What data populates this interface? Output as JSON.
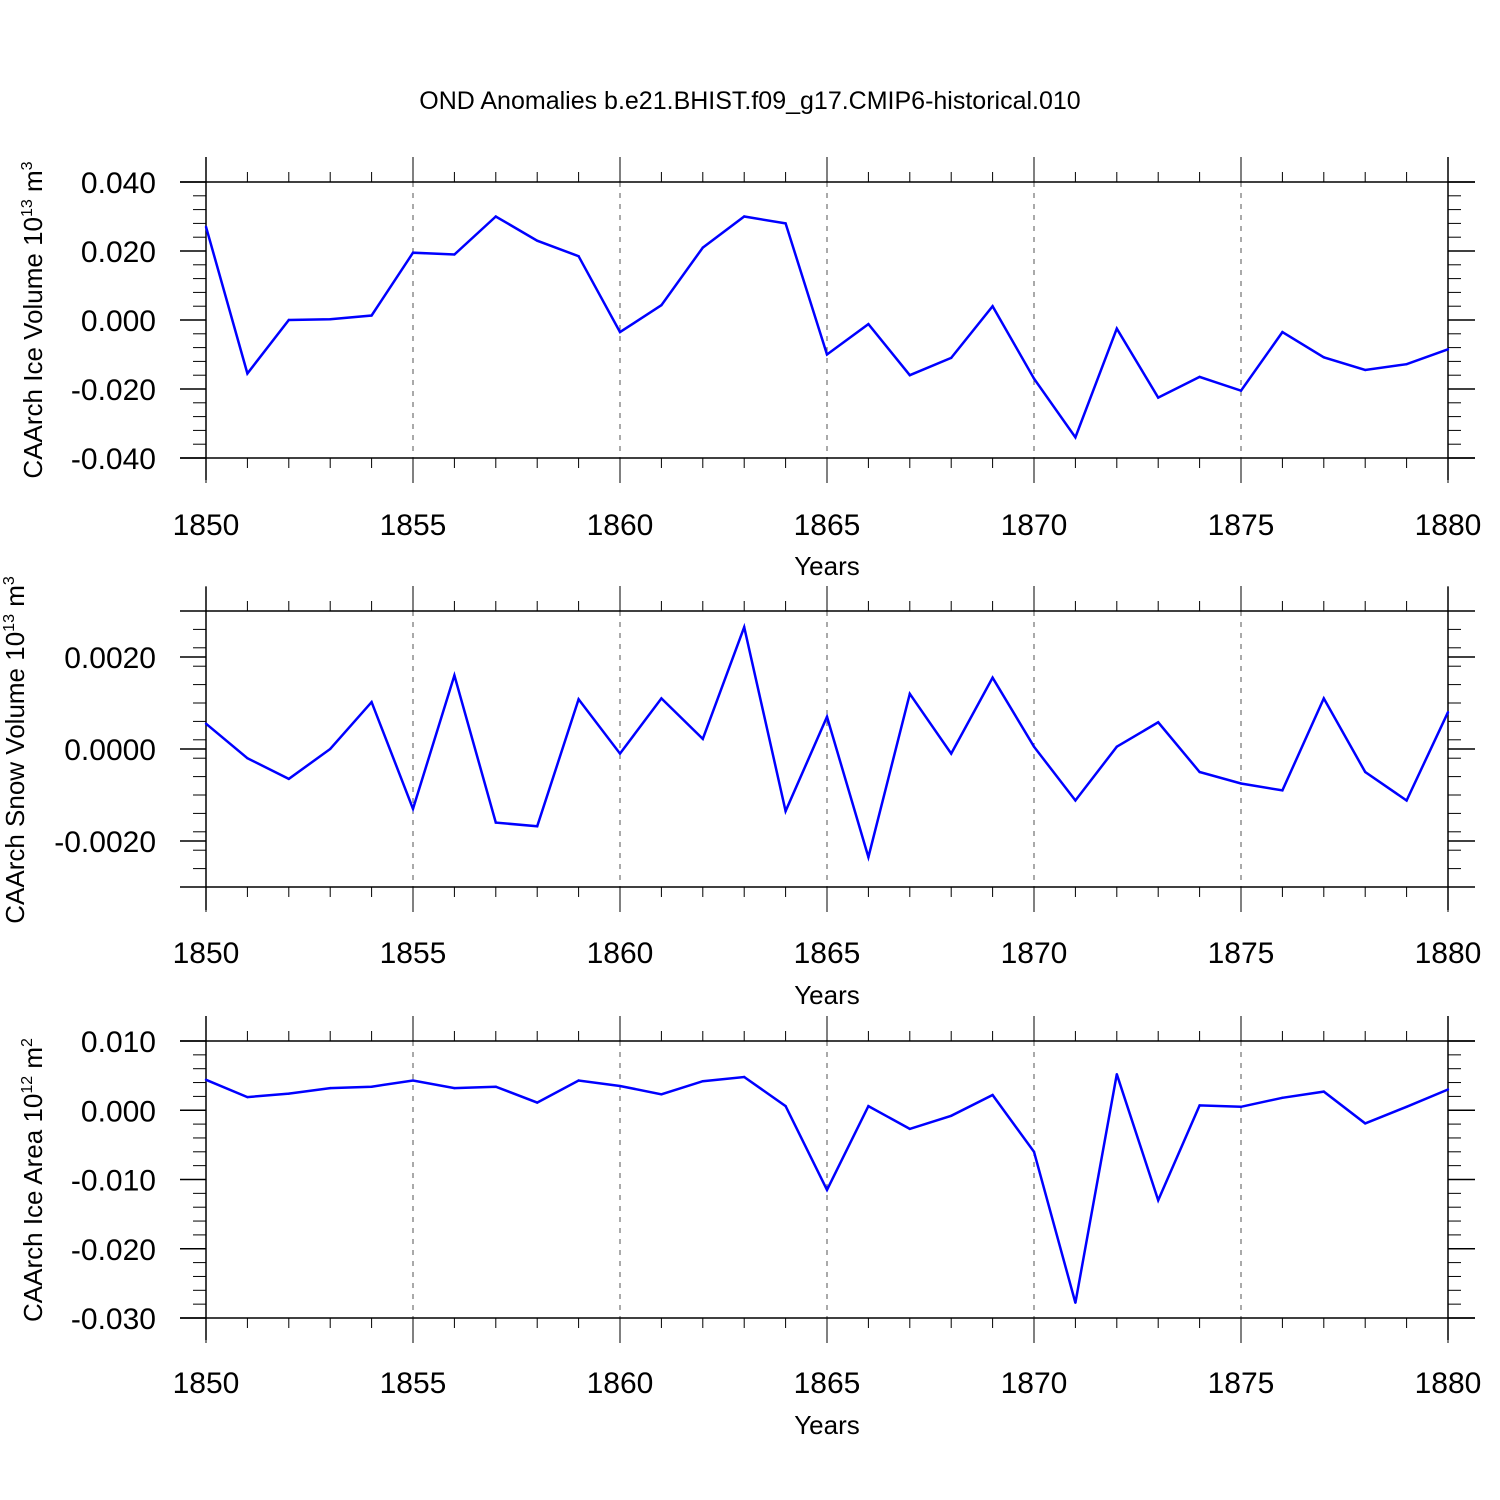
{
  "title": "OND Anomalies b.e21.BHIST.f09_g17.CMIP6-historical.010",
  "line_color": "#0000ff",
  "chart_data": [
    {
      "type": "line",
      "xlabel": "Years",
      "ylabel": "CAArch Ice Volume 10",
      "ylabel_exp": "13",
      "ylabel_unit": " m",
      "ylabel_unit_exp": "3",
      "xlim": [
        1850,
        1880
      ],
      "ylim": [
        -0.04,
        0.04
      ],
      "xticks": [
        1850,
        1855,
        1860,
        1865,
        1870,
        1875,
        1880
      ],
      "yticks": [
        -0.04,
        -0.02,
        0.0,
        0.02,
        0.04
      ],
      "ytick_labels": [
        "-0.040",
        "-0.020",
        "0.000",
        "0.020",
        "0.040"
      ],
      "grid": "vertical dashed at major x ticks",
      "x": [
        1850,
        1851,
        1852,
        1853,
        1854,
        1855,
        1856,
        1857,
        1858,
        1859,
        1860,
        1861,
        1862,
        1863,
        1864,
        1865,
        1866,
        1867,
        1868,
        1869,
        1870,
        1871,
        1872,
        1873,
        1874,
        1875,
        1876,
        1877,
        1878,
        1879,
        1880
      ],
      "values": [
        0.027,
        -0.0155,
        0.0,
        0.0002,
        0.0013,
        0.0195,
        0.019,
        0.03,
        0.023,
        0.0185,
        -0.0035,
        0.0043,
        0.021,
        0.03,
        0.028,
        -0.01,
        -0.0012,
        -0.016,
        -0.011,
        0.004,
        -0.017,
        -0.034,
        -0.0025,
        -0.0225,
        -0.0165,
        -0.0205,
        -0.0035,
        -0.0108,
        -0.0145,
        -0.0128,
        -0.0085
      ]
    },
    {
      "type": "line",
      "xlabel": "Years",
      "ylabel": "CAArch Snow Volume 10",
      "ylabel_exp": "13",
      "ylabel_unit": " m",
      "ylabel_unit_exp": "3",
      "xlim": [
        1850,
        1880
      ],
      "ylim": [
        -0.003,
        0.003
      ],
      "xticks": [
        1850,
        1855,
        1860,
        1865,
        1870,
        1875,
        1880
      ],
      "yticks": [
        -0.002,
        0.0,
        0.002
      ],
      "ytick_labels": [
        "-0.0020",
        "0.0000",
        "0.0020"
      ],
      "grid": "vertical dashed at major x ticks",
      "x": [
        1850,
        1851,
        1852,
        1853,
        1854,
        1855,
        1856,
        1857,
        1858,
        1859,
        1860,
        1861,
        1862,
        1863,
        1864,
        1865,
        1866,
        1867,
        1868,
        1869,
        1870,
        1871,
        1872,
        1873,
        1874,
        1875,
        1876,
        1877,
        1878,
        1879,
        1880
      ],
      "values": [
        0.00055,
        -0.0002,
        -0.00065,
        0.0,
        0.00102,
        -0.0013,
        0.0016,
        -0.0016,
        -0.00168,
        0.00108,
        -0.0001,
        0.0011,
        0.00022,
        0.00265,
        -0.00135,
        0.0007,
        -0.00235,
        0.0012,
        -0.0001,
        0.00155,
        5e-05,
        -0.00112,
        5e-05,
        0.00058,
        -0.0005,
        -0.00075,
        -0.0009,
        0.0011,
        -0.0005,
        -0.00112,
        0.0008
      ]
    },
    {
      "type": "line",
      "xlabel": "Years",
      "ylabel": "CAArch Ice Area 10",
      "ylabel_exp": "12",
      "ylabel_unit": " m",
      "ylabel_unit_exp": "2",
      "xlim": [
        1850,
        1880
      ],
      "ylim": [
        -0.03,
        0.01
      ],
      "xticks": [
        1850,
        1855,
        1860,
        1865,
        1870,
        1875,
        1880
      ],
      "yticks": [
        -0.03,
        -0.02,
        -0.01,
        0.0,
        0.01
      ],
      "ytick_labels": [
        "-0.030",
        "-0.020",
        "-0.010",
        "0.000",
        "0.010"
      ],
      "grid": "vertical dashed at major x ticks",
      "x": [
        1850,
        1851,
        1852,
        1853,
        1854,
        1855,
        1856,
        1857,
        1858,
        1859,
        1860,
        1861,
        1862,
        1863,
        1864,
        1865,
        1866,
        1867,
        1868,
        1869,
        1870,
        1871,
        1872,
        1873,
        1874,
        1875,
        1876,
        1877,
        1878,
        1879,
        1880
      ],
      "values": [
        0.0044,
        0.0019,
        0.0024,
        0.0032,
        0.0034,
        0.0043,
        0.0032,
        0.0034,
        0.0011,
        0.0043,
        0.0035,
        0.0023,
        0.0042,
        0.0048,
        0.0006,
        -0.0115,
        0.0006,
        -0.0027,
        -0.0008,
        0.0022,
        -0.006,
        -0.0278,
        0.0052,
        -0.013,
        0.0007,
        0.0005,
        0.0018,
        0.0027,
        -0.0019,
        0.0005,
        0.003
      ]
    }
  ]
}
